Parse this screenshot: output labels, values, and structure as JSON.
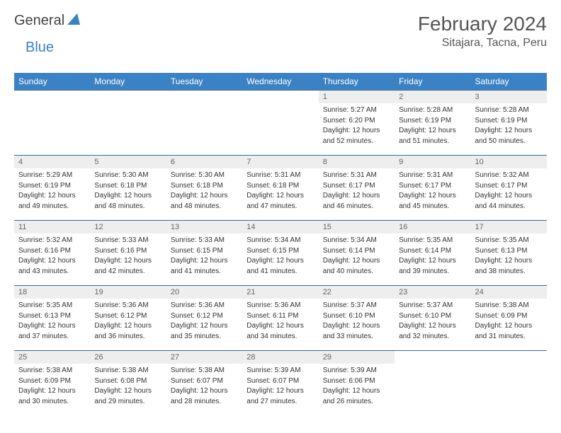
{
  "brand": {
    "part1": "General",
    "part2": "Blue"
  },
  "title": "February 2024",
  "location": "Sitajara, Tacna, Peru",
  "colors": {
    "header_bg": "#3b82c4",
    "header_text": "#ffffff",
    "date_bg": "#eeeeee",
    "date_text": "#666666",
    "week_border": "#3b6a9a",
    "body_text": "#333333",
    "title_text": "#555555"
  },
  "day_names": [
    "Sunday",
    "Monday",
    "Tuesday",
    "Wednesday",
    "Thursday",
    "Friday",
    "Saturday"
  ],
  "weeks": [
    [
      null,
      null,
      null,
      null,
      {
        "d": "1",
        "sr": "Sunrise: 5:27 AM",
        "ss": "Sunset: 6:20 PM",
        "dl1": "Daylight: 12 hours",
        "dl2": "and 52 minutes."
      },
      {
        "d": "2",
        "sr": "Sunrise: 5:28 AM",
        "ss": "Sunset: 6:19 PM",
        "dl1": "Daylight: 12 hours",
        "dl2": "and 51 minutes."
      },
      {
        "d": "3",
        "sr": "Sunrise: 5:28 AM",
        "ss": "Sunset: 6:19 PM",
        "dl1": "Daylight: 12 hours",
        "dl2": "and 50 minutes."
      }
    ],
    [
      {
        "d": "4",
        "sr": "Sunrise: 5:29 AM",
        "ss": "Sunset: 6:19 PM",
        "dl1": "Daylight: 12 hours",
        "dl2": "and 49 minutes."
      },
      {
        "d": "5",
        "sr": "Sunrise: 5:30 AM",
        "ss": "Sunset: 6:18 PM",
        "dl1": "Daylight: 12 hours",
        "dl2": "and 48 minutes."
      },
      {
        "d": "6",
        "sr": "Sunrise: 5:30 AM",
        "ss": "Sunset: 6:18 PM",
        "dl1": "Daylight: 12 hours",
        "dl2": "and 48 minutes."
      },
      {
        "d": "7",
        "sr": "Sunrise: 5:31 AM",
        "ss": "Sunset: 6:18 PM",
        "dl1": "Daylight: 12 hours",
        "dl2": "and 47 minutes."
      },
      {
        "d": "8",
        "sr": "Sunrise: 5:31 AM",
        "ss": "Sunset: 6:17 PM",
        "dl1": "Daylight: 12 hours",
        "dl2": "and 46 minutes."
      },
      {
        "d": "9",
        "sr": "Sunrise: 5:31 AM",
        "ss": "Sunset: 6:17 PM",
        "dl1": "Daylight: 12 hours",
        "dl2": "and 45 minutes."
      },
      {
        "d": "10",
        "sr": "Sunrise: 5:32 AM",
        "ss": "Sunset: 6:17 PM",
        "dl1": "Daylight: 12 hours",
        "dl2": "and 44 minutes."
      }
    ],
    [
      {
        "d": "11",
        "sr": "Sunrise: 5:32 AM",
        "ss": "Sunset: 6:16 PM",
        "dl1": "Daylight: 12 hours",
        "dl2": "and 43 minutes."
      },
      {
        "d": "12",
        "sr": "Sunrise: 5:33 AM",
        "ss": "Sunset: 6:16 PM",
        "dl1": "Daylight: 12 hours",
        "dl2": "and 42 minutes."
      },
      {
        "d": "13",
        "sr": "Sunrise: 5:33 AM",
        "ss": "Sunset: 6:15 PM",
        "dl1": "Daylight: 12 hours",
        "dl2": "and 41 minutes."
      },
      {
        "d": "14",
        "sr": "Sunrise: 5:34 AM",
        "ss": "Sunset: 6:15 PM",
        "dl1": "Daylight: 12 hours",
        "dl2": "and 41 minutes."
      },
      {
        "d": "15",
        "sr": "Sunrise: 5:34 AM",
        "ss": "Sunset: 6:14 PM",
        "dl1": "Daylight: 12 hours",
        "dl2": "and 40 minutes."
      },
      {
        "d": "16",
        "sr": "Sunrise: 5:35 AM",
        "ss": "Sunset: 6:14 PM",
        "dl1": "Daylight: 12 hours",
        "dl2": "and 39 minutes."
      },
      {
        "d": "17",
        "sr": "Sunrise: 5:35 AM",
        "ss": "Sunset: 6:13 PM",
        "dl1": "Daylight: 12 hours",
        "dl2": "and 38 minutes."
      }
    ],
    [
      {
        "d": "18",
        "sr": "Sunrise: 5:35 AM",
        "ss": "Sunset: 6:13 PM",
        "dl1": "Daylight: 12 hours",
        "dl2": "and 37 minutes."
      },
      {
        "d": "19",
        "sr": "Sunrise: 5:36 AM",
        "ss": "Sunset: 6:12 PM",
        "dl1": "Daylight: 12 hours",
        "dl2": "and 36 minutes."
      },
      {
        "d": "20",
        "sr": "Sunrise: 5:36 AM",
        "ss": "Sunset: 6:12 PM",
        "dl1": "Daylight: 12 hours",
        "dl2": "and 35 minutes."
      },
      {
        "d": "21",
        "sr": "Sunrise: 5:36 AM",
        "ss": "Sunset: 6:11 PM",
        "dl1": "Daylight: 12 hours",
        "dl2": "and 34 minutes."
      },
      {
        "d": "22",
        "sr": "Sunrise: 5:37 AM",
        "ss": "Sunset: 6:10 PM",
        "dl1": "Daylight: 12 hours",
        "dl2": "and 33 minutes."
      },
      {
        "d": "23",
        "sr": "Sunrise: 5:37 AM",
        "ss": "Sunset: 6:10 PM",
        "dl1": "Daylight: 12 hours",
        "dl2": "and 32 minutes."
      },
      {
        "d": "24",
        "sr": "Sunrise: 5:38 AM",
        "ss": "Sunset: 6:09 PM",
        "dl1": "Daylight: 12 hours",
        "dl2": "and 31 minutes."
      }
    ],
    [
      {
        "d": "25",
        "sr": "Sunrise: 5:38 AM",
        "ss": "Sunset: 6:09 PM",
        "dl1": "Daylight: 12 hours",
        "dl2": "and 30 minutes."
      },
      {
        "d": "26",
        "sr": "Sunrise: 5:38 AM",
        "ss": "Sunset: 6:08 PM",
        "dl1": "Daylight: 12 hours",
        "dl2": "and 29 minutes."
      },
      {
        "d": "27",
        "sr": "Sunrise: 5:38 AM",
        "ss": "Sunset: 6:07 PM",
        "dl1": "Daylight: 12 hours",
        "dl2": "and 28 minutes."
      },
      {
        "d": "28",
        "sr": "Sunrise: 5:39 AM",
        "ss": "Sunset: 6:07 PM",
        "dl1": "Daylight: 12 hours",
        "dl2": "and 27 minutes."
      },
      {
        "d": "29",
        "sr": "Sunrise: 5:39 AM",
        "ss": "Sunset: 6:06 PM",
        "dl1": "Daylight: 12 hours",
        "dl2": "and 26 minutes."
      },
      null,
      null
    ]
  ]
}
